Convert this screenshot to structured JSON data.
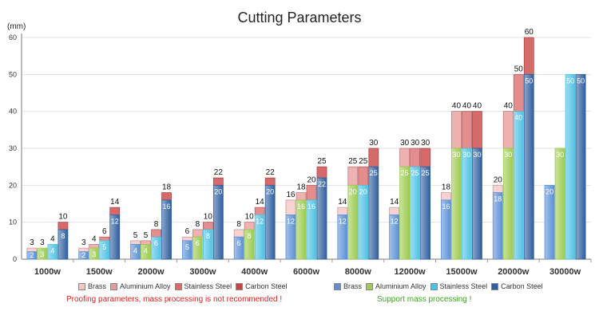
{
  "chart_data": {
    "type": "bar",
    "title": "Cutting Parameters",
    "ylabel": "(mm)",
    "ylim": [
      0,
      60
    ],
    "yticks": [
      0,
      10,
      20,
      30,
      40,
      50,
      60
    ],
    "categories": [
      "1000w",
      "1500w",
      "2000w",
      "3000w",
      "4000w",
      "6000w",
      "8000w",
      "12000w",
      "15000w",
      "20000w",
      "30000w"
    ],
    "series": [
      {
        "name": "Brass",
        "color": "#5b8fd6",
        "mass": [
          2,
          2,
          4,
          5,
          6,
          12,
          12,
          12,
          16,
          18,
          20
        ],
        "proofing": [
          3,
          3,
          5,
          6,
          8,
          16,
          14,
          14,
          18,
          20,
          null
        ]
      },
      {
        "name": "Aluminium Alloy",
        "color": "#9ccb4e",
        "mass": [
          3,
          3,
          4,
          6,
          8,
          16,
          20,
          25,
          30,
          30,
          30
        ],
        "proofing": [
          3,
          4,
          5,
          8,
          10,
          18,
          25,
          30,
          40,
          40,
          null
        ]
      },
      {
        "name": "Stainless Steel",
        "color": "#4fc2e3",
        "mass": [
          4,
          5,
          6,
          8,
          12,
          16,
          20,
          25,
          30,
          40,
          50
        ],
        "proofing": [
          4,
          6,
          8,
          10,
          14,
          20,
          25,
          30,
          40,
          50,
          null
        ]
      },
      {
        "name": "Carbon Steel",
        "color": "#2f5f9f",
        "mass": [
          8,
          12,
          16,
          20,
          20,
          22,
          25,
          25,
          30,
          50,
          50
        ],
        "proofing": [
          10,
          14,
          18,
          22,
          22,
          25,
          30,
          30,
          40,
          60,
          null
        ]
      }
    ],
    "legends": {
      "proofing": {
        "items": [
          "Brass",
          "Aluminium Alloy",
          "Stainless Steel",
          "Carbon Steel"
        ],
        "colors": [
          "#f2c4c4",
          "#e79a9a",
          "#d96a6a",
          "#c04848"
        ]
      },
      "mass": {
        "items": [
          "Brass",
          "Aluminium Alloy",
          "Stainless Steel",
          "Carbon Steel"
        ],
        "colors": [
          "#5b8fd6",
          "#9ccb4e",
          "#4fc2e3",
          "#2f5f9f"
        ]
      }
    },
    "notes": {
      "proofing": "Proofing parameters, mass processing is not recommended !",
      "mass": "Support mass processing !"
    },
    "colors": {
      "proofing_note": "#e02020",
      "mass_note": "#3aa51a"
    }
  }
}
